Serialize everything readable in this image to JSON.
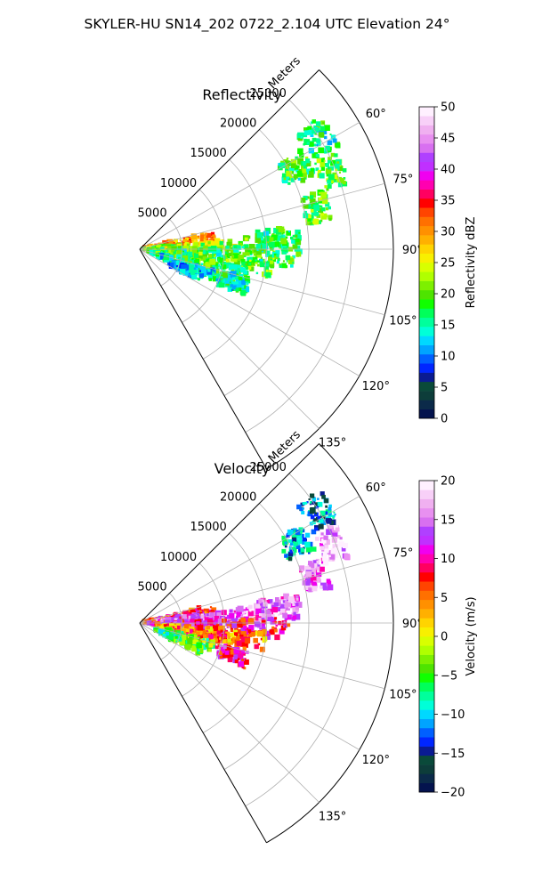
{
  "figure": {
    "suptitle": "SKYLER-HU  SN14_202  0722_2.104 UTC Elevation 24°"
  },
  "chart_data": [
    {
      "type": "heatmap",
      "id": "reflectivity",
      "title": "Reflectivity",
      "projection": "polar-sector",
      "azimuth_range_deg": [
        45,
        150
      ],
      "range_max_m": 30000,
      "radial_ticks": [
        5000,
        10000,
        15000,
        20000,
        25000
      ],
      "radial_tick_labels": [
        "5000",
        "10000",
        "15000",
        "20000",
        "25000"
      ],
      "radial_label": "Meters",
      "angle_ticks": [
        60,
        75,
        90,
        105,
        120,
        135
      ],
      "angle_tick_labels": [
        "60°",
        "75°",
        "90°",
        "105°",
        "120°",
        "135°"
      ],
      "grid": true,
      "colorbar": {
        "label": "Reflectivity dBZ",
        "range": [
          0,
          50
        ],
        "ticks": [
          0,
          5,
          10,
          15,
          20,
          25,
          30,
          35,
          40,
          45,
          50
        ],
        "tick_labels": [
          "0",
          "5",
          "10",
          "15",
          "20",
          "25",
          "30",
          "35",
          "40",
          "45",
          "50"
        ],
        "colors": [
          "#04134e",
          "#0b2a49",
          "#0d3d3a",
          "#0a4a3a",
          "#0a1b92",
          "#0026ff",
          "#0060ff",
          "#00a4ff",
          "#00d8ff",
          "#00ffd8",
          "#00ff9c",
          "#00ff5a",
          "#10ff00",
          "#4ee400",
          "#7df000",
          "#b0ff00",
          "#d8ff00",
          "#f8f000",
          "#ffd400",
          "#ffb000",
          "#ff9000",
          "#ff7000",
          "#ff4400",
          "#ff0000",
          "#ff0060",
          "#ff00b0",
          "#f000f0",
          "#c030ff",
          "#b040ff",
          "#d870f0",
          "#e890f0",
          "#f0b0f0",
          "#f8d0f8",
          "#fff0ff"
        ]
      },
      "echo_regions": [
        {
          "az": 81,
          "r0": 0,
          "r1": 9000,
          "value": 30
        },
        {
          "az": 88,
          "r0": 0,
          "r1": 13000,
          "value": 22
        },
        {
          "az": 93,
          "r0": 2000,
          "r1": 19000,
          "value": 18
        },
        {
          "az": 98,
          "r0": 1000,
          "r1": 16000,
          "value": 20
        },
        {
          "az": 104,
          "r0": 1500,
          "r1": 13000,
          "value": 18
        },
        {
          "az": 110,
          "r0": 2000,
          "r1": 12000,
          "value": 14
        },
        {
          "az": 114,
          "r0": 4000,
          "r1": 8000,
          "value": 12
        },
        {
          "az": 86,
          "r0": 14000,
          "r1": 19000,
          "value": 18
        },
        {
          "az": 77,
          "r0": 20000,
          "r1": 23000,
          "value": 20
        },
        {
          "az": 68,
          "r0": 23000,
          "r1": 26000,
          "value": 20
        },
        {
          "az": 63,
          "r0": 19000,
          "r1": 22500,
          "value": 18
        },
        {
          "az": 58,
          "r0": 23000,
          "r1": 26500,
          "value": 16
        },
        {
          "az": 109,
          "r0": 10000,
          "r1": 13500,
          "value": 16
        }
      ]
    },
    {
      "type": "heatmap",
      "id": "velocity",
      "title": "Velocity",
      "projection": "polar-sector",
      "azimuth_range_deg": [
        45,
        150
      ],
      "range_max_m": 30000,
      "radial_ticks": [
        5000,
        10000,
        15000,
        20000,
        25000
      ],
      "radial_tick_labels": [
        "5000",
        "10000",
        "15000",
        "20000",
        "25000"
      ],
      "radial_label": "Meters",
      "angle_ticks": [
        60,
        75,
        90,
        105,
        120,
        135
      ],
      "angle_tick_labels": [
        "60°",
        "75°",
        "90°",
        "105°",
        "120°",
        "135°"
      ],
      "grid": true,
      "colorbar": {
        "label": "Velocity (m/s)",
        "range": [
          -20,
          20
        ],
        "ticks": [
          -20,
          -15,
          -10,
          -5,
          0,
          5,
          10,
          15,
          20
        ],
        "tick_labels": [
          "−20",
          "−15",
          "−10",
          "−5",
          "0",
          "5",
          "10",
          "15",
          "20"
        ],
        "colors": [
          "#04134e",
          "#0b2a49",
          "#0d3d3a",
          "#0a4a3a",
          "#0a1b92",
          "#0026ff",
          "#0060ff",
          "#00a4ff",
          "#00d8ff",
          "#00ffd8",
          "#00ff9c",
          "#00ff5a",
          "#10ff00",
          "#4ee400",
          "#7df000",
          "#b0ff00",
          "#d8ff00",
          "#f8f000",
          "#ffd400",
          "#ffb000",
          "#ff9000",
          "#ff7000",
          "#ff4400",
          "#ff0000",
          "#ff0060",
          "#ff00b0",
          "#f000f0",
          "#c030ff",
          "#b040ff",
          "#d870f0",
          "#e890f0",
          "#f0b0f0",
          "#f8d0f8",
          "#fff0ff"
        ]
      },
      "echo_regions": [
        {
          "az": 80,
          "r0": 0,
          "r1": 9000,
          "value": 8
        },
        {
          "az": 86,
          "r0": 2000,
          "r1": 15000,
          "value": 14
        },
        {
          "az": 92,
          "r0": 1000,
          "r1": 18000,
          "value": 10
        },
        {
          "az": 98,
          "r0": 2000,
          "r1": 15000,
          "value": 4
        },
        {
          "az": 103,
          "r0": 3000,
          "r1": 13000,
          "value": 6
        },
        {
          "az": 108,
          "r0": 2000,
          "r1": 9000,
          "value": -4
        },
        {
          "az": 113,
          "r0": 2000,
          "r1": 8000,
          "value": -6
        },
        {
          "az": 109,
          "r0": 10000,
          "r1": 13500,
          "value": 10
        },
        {
          "az": 84,
          "r0": 14000,
          "r1": 19000,
          "value": 14
        },
        {
          "az": 75,
          "r0": 20000,
          "r1": 23000,
          "value": 14
        },
        {
          "az": 68,
          "r0": 23000,
          "r1": 26000,
          "value": 16
        },
        {
          "az": 63,
          "r0": 19000,
          "r1": 22500,
          "value": -11
        },
        {
          "az": 58,
          "r0": 23000,
          "r1": 26500,
          "value": -12
        }
      ]
    }
  ]
}
